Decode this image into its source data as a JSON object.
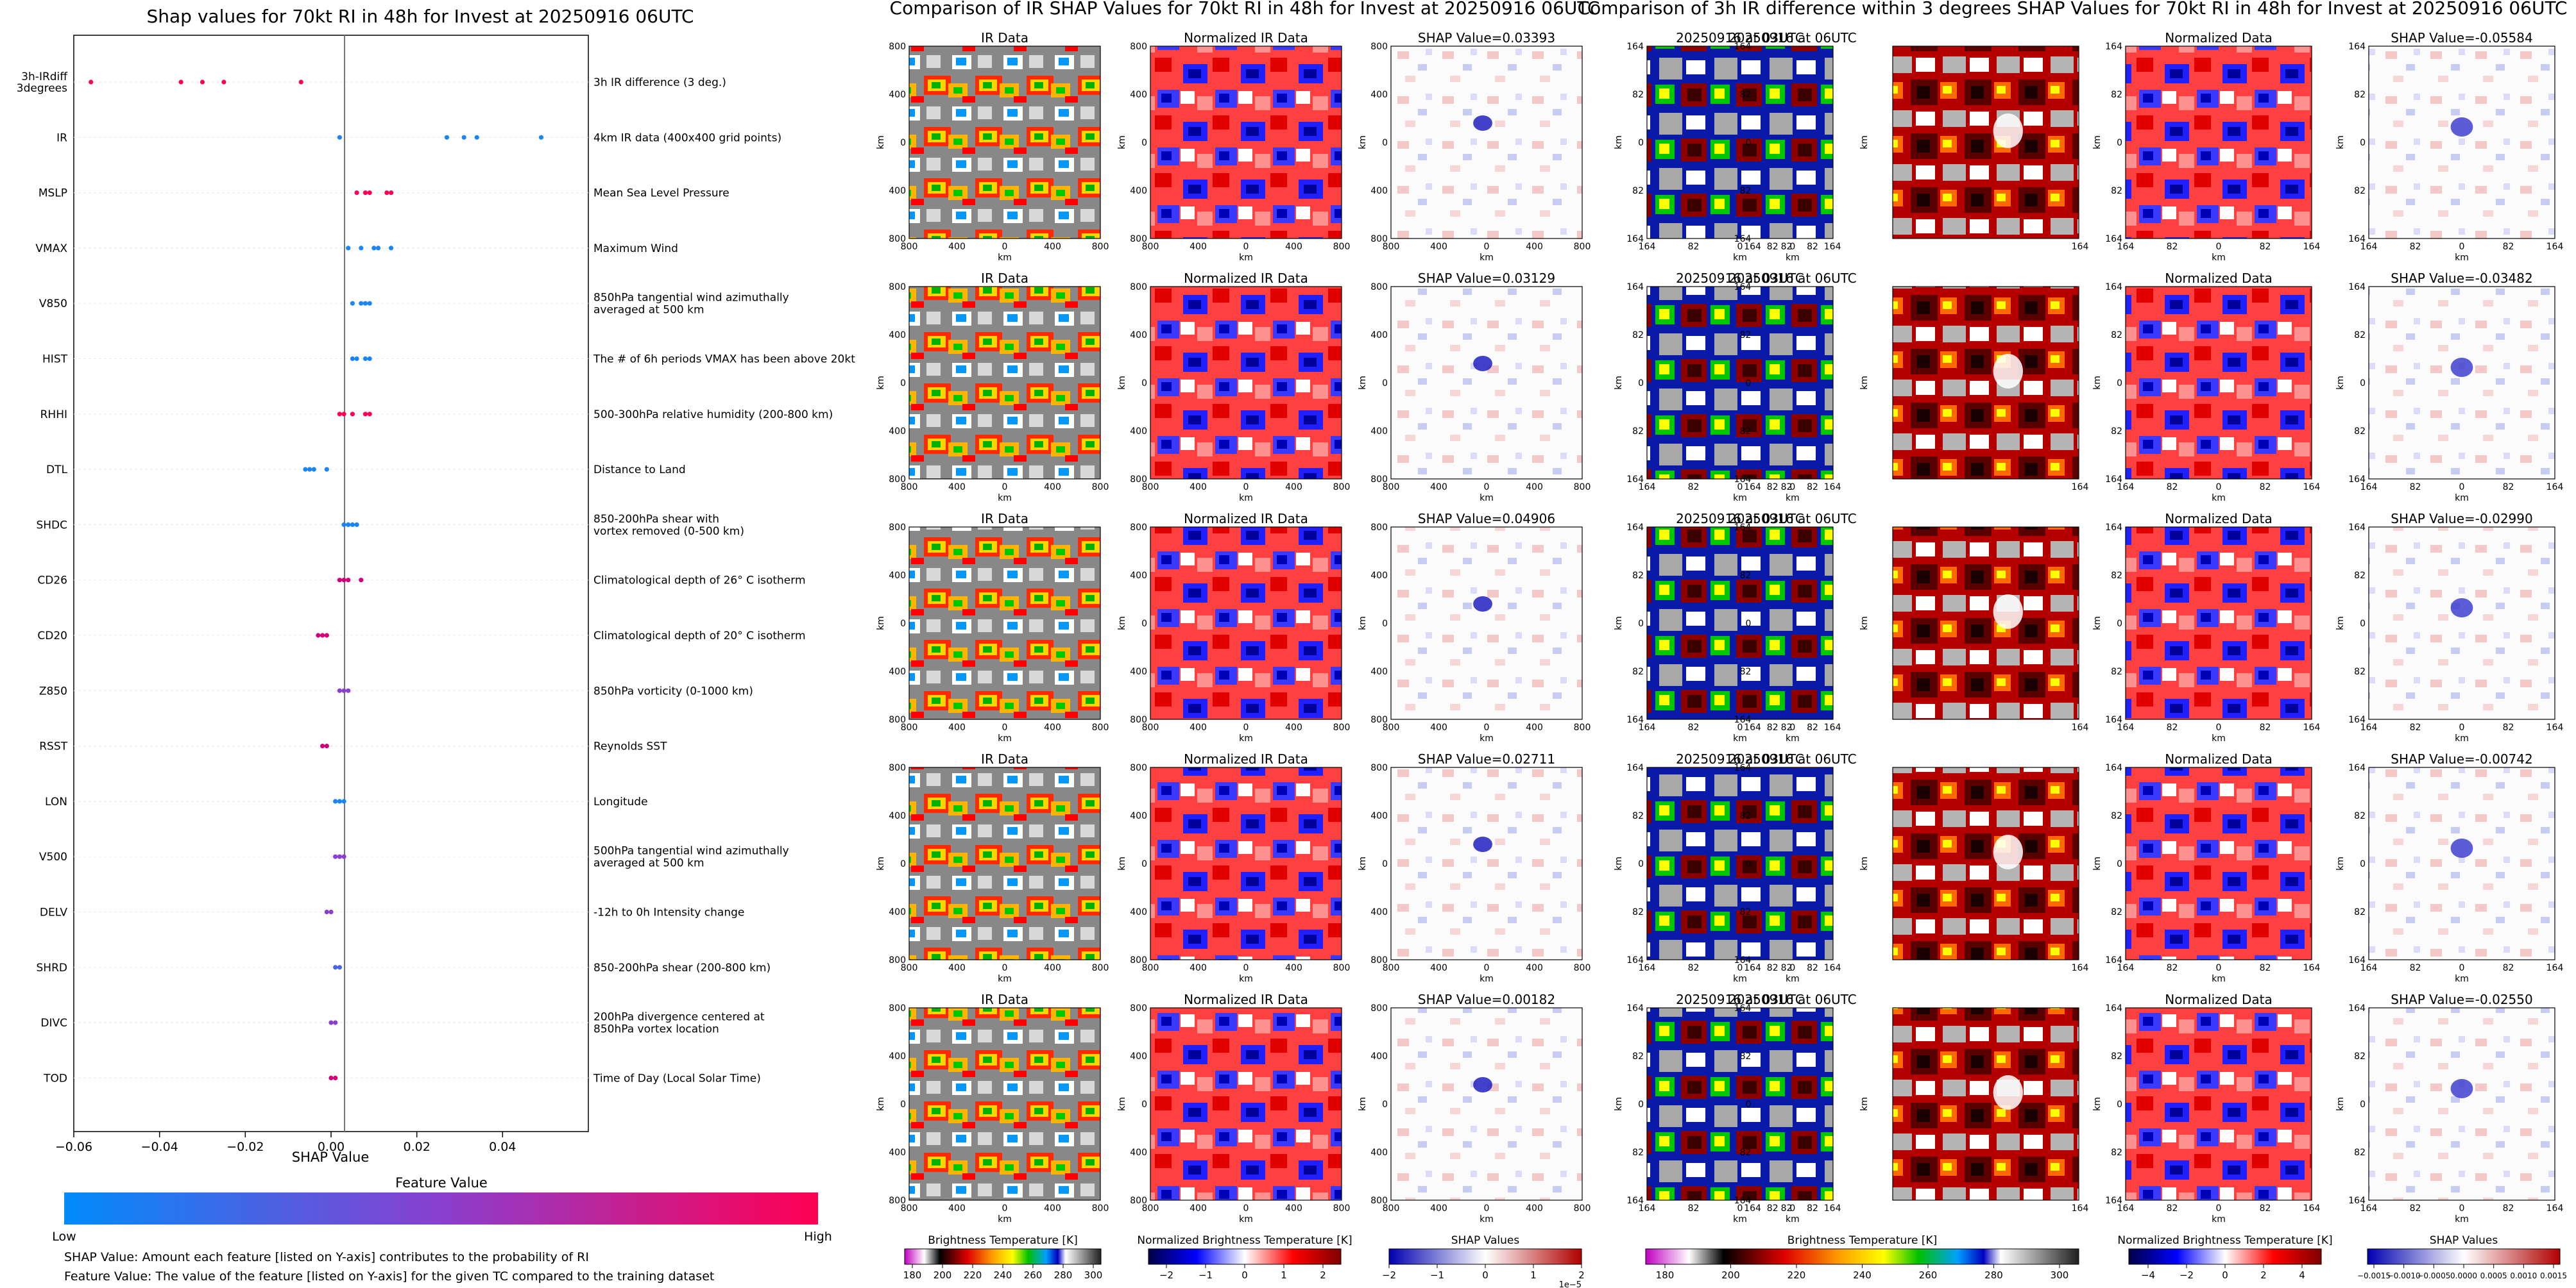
{
  "colors": {
    "low": "#008bfb",
    "mid": "#8a3fcf",
    "high": "#ff0052",
    "gray_panel": "#7a7a7a",
    "ir_cold": "#000000",
    "diverging_neg": "#0000c8",
    "diverging_pos": "#d40000"
  },
  "chart_data": [
    {
      "type": "scatter",
      "title": "Shap values for 70kt RI in 48h for Invest at 20250916 06UTC",
      "xlabel": "SHAP Value",
      "ylabel": "",
      "xlim": [
        -0.06,
        0.06
      ],
      "xticks": [
        "−0.06",
        "−0.04",
        "−0.02",
        "0.00",
        "0.02",
        "0.04"
      ],
      "grid": false,
      "features": [
        {
          "short": "3h-IRdiff\n3degrees",
          "long": "3h IR difference (3 deg.)",
          "shap": [
            -0.056,
            -0.035,
            -0.03,
            -0.025,
            -0.007
          ],
          "color": "#ff0052"
        },
        {
          "short": "IR",
          "long": "4km IR data (400x400 grid points)",
          "shap": [
            0.002,
            0.027,
            0.031,
            0.034,
            0.049
          ],
          "color": "#1a86f5"
        },
        {
          "short": "MSLP",
          "long": "Mean Sea Level Pressure",
          "shap": [
            0.006,
            0.008,
            0.009,
            0.013,
            0.014
          ],
          "color": "#ff0052"
        },
        {
          "short": "VMAX",
          "long": "Maximum Wind",
          "shap": [
            0.004,
            0.007,
            0.01,
            0.011,
            0.014
          ],
          "color": "#1a86f5"
        },
        {
          "short": "V850",
          "long": "850hPa tangential wind azimuthally\naveraged at 500 km",
          "shap": [
            0.005,
            0.007,
            0.008,
            0.009
          ],
          "color": "#1a86f5"
        },
        {
          "short": "HIST",
          "long": "The # of 6h periods VMAX has been above 20kt",
          "shap": [
            0.005,
            0.006,
            0.008,
            0.009
          ],
          "color": "#1a86f5"
        },
        {
          "short": "RHHI",
          "long": "500-300hPa relative humidity (200-800 km)",
          "shap": [
            0.002,
            0.003,
            0.005,
            0.008,
            0.009
          ],
          "color": "#ff0052"
        },
        {
          "short": "DTL",
          "long": "Distance to Land",
          "shap": [
            -0.006,
            -0.005,
            -0.004,
            -0.001
          ],
          "color": "#1a86f5"
        },
        {
          "short": "SHDC",
          "long": "850-200hPa shear with\nvortex removed (0-500 km)",
          "shap": [
            0.003,
            0.004,
            0.005,
            0.006
          ],
          "color": "#1a86f5"
        },
        {
          "short": "CD26",
          "long": "Climatological depth of 26° C isotherm",
          "shap": [
            0.002,
            0.003,
            0.004,
            0.007
          ],
          "color": "#d1007a"
        },
        {
          "short": "CD20",
          "long": "Climatological depth of 20° C isotherm",
          "shap": [
            -0.003,
            -0.002,
            -0.001
          ],
          "color": "#d1007a"
        },
        {
          "short": "Z850",
          "long": "850hPa vorticity (0-1000 km)",
          "shap": [
            0.002,
            0.003,
            0.004
          ],
          "color": "#8a3fcf"
        },
        {
          "short": "RSST",
          "long": "Reynolds SST",
          "shap": [
            -0.002,
            -0.001
          ],
          "color": "#d1007a"
        },
        {
          "short": "LON",
          "long": "Longitude",
          "shap": [
            0.001,
            0.002,
            0.003
          ],
          "color": "#1a86f5"
        },
        {
          "short": "V500",
          "long": "500hPa tangential wind azimuthally\naveraged at 500 km",
          "shap": [
            0.001,
            0.002,
            0.003
          ],
          "color": "#8a3fcf"
        },
        {
          "short": "DELV",
          "long": "-12h to 0h Intensity change",
          "shap": [
            -0.001,
            0.0
          ],
          "color": "#8a3fcf"
        },
        {
          "short": "SHRD",
          "long": "850-200hPa shear (200-800 km)",
          "shap": [
            0.001,
            0.002
          ],
          "color": "#4a63e0"
        },
        {
          "short": "DIVC",
          "long": "200hPa divergence centered at\n850hPa vortex location",
          "shap": [
            0.0,
            0.001
          ],
          "color": "#8a3fcf"
        },
        {
          "short": "TOD",
          "long": "Time of Day (Local Solar Time)",
          "shap": [
            0.0,
            0.001
          ],
          "color": "#d1007a"
        }
      ],
      "colorbar": {
        "title": "Feature Value",
        "low": "Low",
        "high": "High"
      },
      "notes": [
        "SHAP Value: Amount each feature [listed on Y-axis] contributes to the probability of RI",
        "Feature Value: The value of the feature [listed on Y-axis] for the given TC compared to the training dataset"
      ]
    },
    {
      "type": "heatmap",
      "title": "Comparison of IR SHAP Values for 70kt RI in 48h for Invest at 20250916 06UTC",
      "columns": [
        "IR Data",
        "Normalized IR Data",
        "SHAP Value"
      ],
      "shap_values": [
        "0.03393",
        "0.03129",
        "0.04906",
        "0.02711",
        "0.00182"
      ],
      "axis_label": "km",
      "yticks": [
        "800",
        "400",
        "0",
        "400",
        "800"
      ],
      "xticks": [
        "800",
        "400",
        "0",
        "400",
        "800"
      ],
      "colorbars": [
        {
          "label": "Brightness Temperature [K]",
          "ticks": [
            "180",
            "200",
            "220",
            "240",
            "260",
            "280",
            "300"
          ]
        },
        {
          "label": "Normalized Brightness Temperature [K]",
          "ticks": [
            "−2",
            "−1",
            "0",
            "1",
            "2"
          ]
        },
        {
          "label": "SHAP Values",
          "ticks": [
            "−2",
            "−1",
            "0",
            "1",
            "2"
          ],
          "offset": "1e−5"
        }
      ]
    },
    {
      "type": "heatmap",
      "title": "Comparison of 3h IR difference within 3 degrees SHAP Values for 70kt RI in 48h for Invest at 20250916 06UTC",
      "columns": [
        "20250916 at 03UTC",
        "20250916 at 06UTC",
        "Normalized Data",
        "SHAP Value"
      ],
      "shap_values": [
        "-0.05584",
        "-0.03482",
        "-0.02990",
        "-0.00742",
        "-0.02550"
      ],
      "axis_label": "km",
      "yticks": [
        "164",
        "82",
        "0",
        "82",
        "164"
      ],
      "xticks": [
        "164",
        "82",
        "0",
        "82",
        "164"
      ],
      "colorbars": [
        {
          "label": "Brightness Temperature [K]",
          "ticks": [
            "180",
            "200",
            "220",
            "240",
            "260",
            "280",
            "300"
          ]
        },
        {
          "label": "Normalized Brightness Temperature [K]",
          "ticks": [
            "−4",
            "−2",
            "0",
            "2",
            "4"
          ]
        },
        {
          "label": "SHAP Values",
          "ticks": [
            "−0.0015",
            "−0.0010",
            "−0.0005",
            "0.0000",
            "0.0005",
            "0.0010",
            "0.0015"
          ]
        }
      ]
    }
  ]
}
